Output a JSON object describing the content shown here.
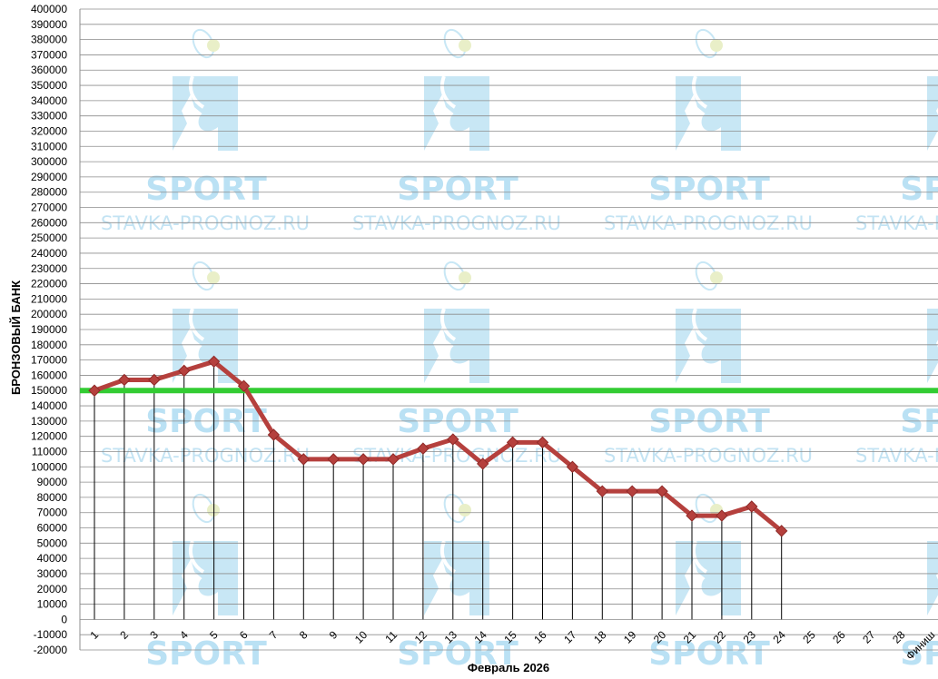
{
  "chart_data": {
    "type": "line",
    "title": "",
    "xlabel": "Февраль 2026",
    "ylabel": "БРОНЗОВЫЙ БАНК",
    "categories": [
      "1",
      "2",
      "3",
      "4",
      "5",
      "6",
      "7",
      "8",
      "9",
      "10",
      "11",
      "12",
      "13",
      "14",
      "15",
      "16",
      "17",
      "18",
      "19",
      "20",
      "21",
      "22",
      "23",
      "24",
      "25",
      "26",
      "27",
      "28",
      "Финиш"
    ],
    "series": [
      {
        "values": [
          150000,
          157000,
          157000,
          163000,
          169000,
          153000,
          121000,
          105000,
          105000,
          105000,
          105000,
          112000,
          118000,
          102000,
          116000,
          116000,
          100000,
          84000,
          84000,
          84000,
          68000,
          68000,
          74000,
          58000,
          null,
          null,
          null,
          null,
          null
        ],
        "color": "#b5403d"
      }
    ],
    "reference_line": {
      "value": 150000,
      "color": "#33cc33"
    },
    "ylim": [
      -20000,
      400000
    ],
    "ytick_step": 10000,
    "grid": true,
    "drop_lines": true,
    "watermark": {
      "brand": "SPORT",
      "site": "STAVKA-PROGNOZ.RU",
      "icon": "tennis-player-icon"
    }
  }
}
